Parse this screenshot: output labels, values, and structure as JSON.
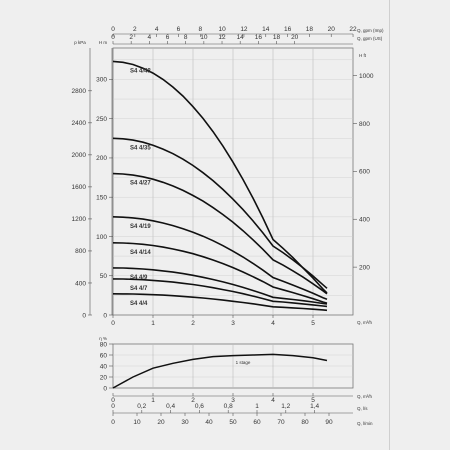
{
  "chart_data": [
    {
      "type": "line",
      "x": [
        0,
        0.25,
        0.5,
        0.75,
        1,
        1.25,
        1.5,
        1.75,
        2,
        2.25,
        2.5,
        2.75,
        3,
        3.25,
        3.5,
        3.75,
        4,
        4.25,
        4.5,
        4.75,
        5,
        5.25,
        5.35
      ],
      "series": [
        {
          "name": "S4 4/48",
          "x": [
            0,
            0.25,
            0.5,
            0.75,
            1,
            1.25,
            1.5,
            1.75,
            2,
            2.25,
            2.5,
            2.75,
            3,
            3.25,
            3.5,
            3.75,
            4,
            4.25,
            4.5,
            4.75,
            5,
            5.25,
            5.35
          ],
          "values": [
            323,
            321.8,
            319,
            314.3,
            308,
            300,
            290.2,
            278.7,
            265.3,
            250.3,
            233.5,
            214.9,
            194.6,
            172.6,
            148.9,
            123.4,
            96.2,
            85,
            73,
            60,
            47,
            33,
            28
          ]
        },
        {
          "name": "S4 4/35",
          "values": [
            225,
            224.4,
            222.7,
            220,
            216.2,
            211.3,
            205.4,
            198.4,
            190.4,
            181.2,
            171.1,
            159.8,
            147.5,
            134.2,
            119.8,
            104.4,
            87.9,
            79.4,
            70.1,
            60.2,
            49.7,
            38.5,
            34
          ]
        },
        {
          "name": "S4 4/27",
          "values": [
            180,
            179.5,
            178.2,
            176,
            172.9,
            169,
            164.3,
            158.7,
            152.2,
            145,
            136.8,
            127.8,
            118,
            107.3,
            95.8,
            83.5,
            70.3,
            63.5,
            56.1,
            48.2,
            39.7,
            30.8,
            27
          ]
        },
        {
          "name": "S4 4/19",
          "values": [
            125,
            124.6,
            123.7,
            122.1,
            119.9,
            117.2,
            113.9,
            109.9,
            105.4,
            100.3,
            94.6,
            88.2,
            81.3,
            73.8,
            65.7,
            57,
            47.8,
            43.1,
            38.1,
            33,
            27.6,
            22,
            20
          ]
        },
        {
          "name": "S4 4/14",
          "values": [
            92,
            91.7,
            91.1,
            90,
            88.5,
            86.5,
            84.1,
            81.3,
            78,
            74.2,
            70,
            65.4,
            60.3,
            54.8,
            48.8,
            42.5,
            35.6,
            32.1,
            28.5,
            24.7,
            20.7,
            16.6,
            15
          ]
        },
        {
          "name": "S4 4/9",
          "values": [
            60,
            59.8,
            59.3,
            58.6,
            57.5,
            56.2,
            54.6,
            52.7,
            50.5,
            48,
            45.2,
            42.1,
            38.8,
            35.1,
            31.2,
            27,
            22.5,
            21.2,
            19.8,
            18.2,
            16.5,
            14.7,
            14
          ]
        },
        {
          "name": "S4 4/7",
          "values": [
            46,
            45.9,
            45.5,
            44.9,
            44.1,
            43.1,
            41.9,
            40.4,
            38.8,
            36.9,
            34.8,
            32.4,
            29.9,
            27.1,
            24.1,
            20.9,
            17.5,
            16.5,
            15.4,
            14.1,
            12.8,
            11.4,
            11
          ]
        },
        {
          "name": "S4 4/4",
          "values": [
            27,
            26.9,
            26.7,
            26.4,
            25.9,
            25.3,
            24.6,
            23.7,
            22.7,
            21.6,
            20.4,
            19,
            17.5,
            15.9,
            14.2,
            12.4,
            10.4,
            9.8,
            9.1,
            8.3,
            7.4,
            6.5,
            6
          ]
        }
      ],
      "xlim": [
        0,
        6
      ],
      "ylim": [
        0,
        340
      ],
      "x_ticks": [
        0,
        1,
        2,
        3,
        4,
        5
      ],
      "x_unit": "Q, m³/h",
      "left_ticks_H": [
        0,
        50,
        100,
        150,
        200,
        250,
        300
      ],
      "left_unit_H": "H m",
      "left_ticks_p": [
        0,
        400,
        800,
        1200,
        1600,
        2000,
        2400,
        2800
      ],
      "left_unit_p": "p kPa",
      "right_ticks": [
        200,
        400,
        600,
        800,
        1000
      ],
      "right_unit": "H ft",
      "top_ticks_imp": [
        0,
        2,
        4,
        6,
        8,
        10,
        12,
        14,
        16,
        18,
        20,
        22
      ],
      "top_unit_imp": "Q, gpm (Imp)",
      "top_ticks_us": [
        0,
        2,
        4,
        6,
        8,
        10,
        12,
        14,
        16,
        18,
        20
      ],
      "top_unit_us": "Q, gpm (US)",
      "grid": true
    },
    {
      "type": "line",
      "series": [
        {
          "name": "S4 4/48",
          "label": "1 stage",
          "x": [
            0,
            0.5,
            1,
            1.5,
            2,
            2.5,
            3,
            3.5,
            4,
            4.5,
            5,
            5.35
          ],
          "values": [
            0,
            20,
            36,
            45,
            52,
            57,
            59,
            60,
            61,
            59,
            55,
            50
          ]
        }
      ],
      "xlim": [
        0,
        6
      ],
      "ylim": [
        0,
        80
      ],
      "y_ticks": [
        0,
        20,
        40,
        60,
        80
      ],
      "y_unit": "η %",
      "x_ticks": [
        0,
        1,
        2,
        3,
        4,
        5
      ],
      "x_unit": "Q, m³/h",
      "x2_ticks": [
        "0",
        "0,2",
        "0,4",
        "0,6",
        "0,8",
        "1",
        "1,2",
        "1,4"
      ],
      "x2_unit": "Q, l/s",
      "x3_ticks": [
        0,
        10,
        20,
        30,
        40,
        50,
        60,
        70,
        80,
        90
      ],
      "x3_unit": "Q, l/min",
      "grid": true
    }
  ]
}
